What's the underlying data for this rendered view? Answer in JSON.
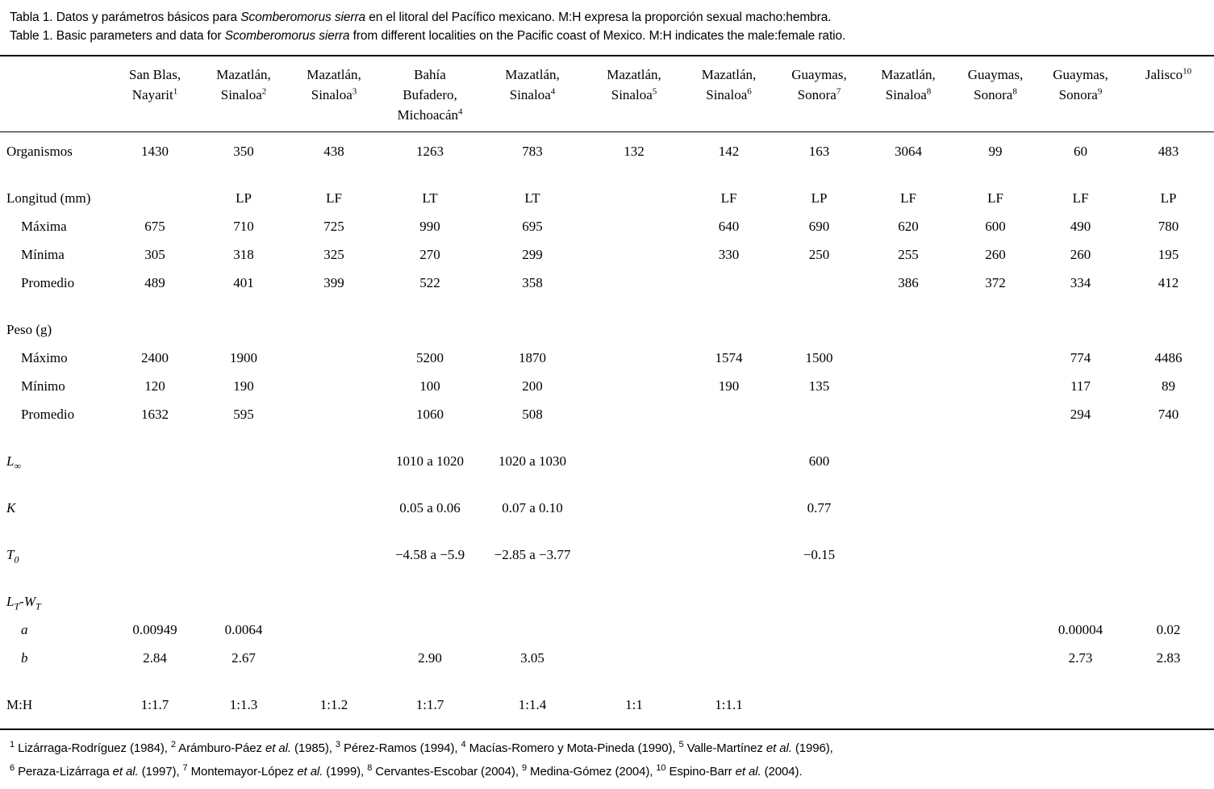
{
  "caption": {
    "species": "Scomberomorus sierra",
    "es": {
      "prefix": "Tabla 1.",
      "body1": " Datos y parámetros básicos para ",
      "body2": " en el litoral del Pacífico mexicano. M:H expresa la proporción sexual macho:hembra."
    },
    "en": {
      "prefix": "Table 1.",
      "body1": " Basic parameters and data for ",
      "body2": " from different localities on the Pacific coast of Mexico. M:H indicates the male:female ratio."
    }
  },
  "table": {
    "columns": [
      {
        "lines": [
          "San Blas,",
          "Nayarit"
        ],
        "sup": "1"
      },
      {
        "lines": [
          "Mazatlán,",
          "Sinaloa"
        ],
        "sup": "2"
      },
      {
        "lines": [
          "Mazatlán,",
          "Sinaloa"
        ],
        "sup": "3"
      },
      {
        "lines": [
          "Bahía",
          "Bufadero,",
          "Michoacán"
        ],
        "sup": "4"
      },
      {
        "lines": [
          "Mazatlán,",
          "Sinaloa"
        ],
        "sup": "4"
      },
      {
        "lines": [
          "Mazatlán,",
          "Sinaloa"
        ],
        "sup": "5"
      },
      {
        "lines": [
          "Mazatlán,",
          "Sinaloa"
        ],
        "sup": "6"
      },
      {
        "lines": [
          "Guaymas,",
          "Sonora"
        ],
        "sup": "7"
      },
      {
        "lines": [
          "Mazatlán,",
          "Sinaloa"
        ],
        "sup": "8"
      },
      {
        "lines": [
          "Guaymas,",
          "Sonora"
        ],
        "sup": "8"
      },
      {
        "lines": [
          "Guaymas,",
          "Sonora"
        ],
        "sup": "9"
      },
      {
        "lines": [
          "Jalisco"
        ],
        "sup": "10"
      }
    ],
    "rows": [
      {
        "id": "organismos",
        "indent": false,
        "group_start": false,
        "label": [
          {
            "t": "text",
            "v": "Organismos"
          }
        ],
        "cells": [
          "1430",
          "350",
          "438",
          "1263",
          "783",
          "132",
          "142",
          "163",
          "3064",
          "99",
          "60",
          "483"
        ]
      },
      {
        "id": "longitud-mm",
        "indent": false,
        "group_start": true,
        "label": [
          {
            "t": "text",
            "v": "Longitud (mm)"
          }
        ],
        "cells": [
          "",
          "LP",
          "LF",
          "LT",
          "LT",
          "",
          "LF",
          "LP",
          "LF",
          "LF",
          "LF",
          "LP"
        ]
      },
      {
        "id": "longitud-maxima",
        "indent": true,
        "group_start": false,
        "label": [
          {
            "t": "text",
            "v": "Máxima"
          }
        ],
        "cells": [
          "675",
          "710",
          "725",
          "990",
          "695",
          "",
          "640",
          "690",
          "620",
          "600",
          "490",
          "780"
        ]
      },
      {
        "id": "longitud-minima",
        "indent": true,
        "group_start": false,
        "label": [
          {
            "t": "text",
            "v": "Mínima"
          }
        ],
        "cells": [
          "305",
          "318",
          "325",
          "270",
          "299",
          "",
          "330",
          "250",
          "255",
          "260",
          "260",
          "195"
        ]
      },
      {
        "id": "longitud-promedio",
        "indent": true,
        "group_start": false,
        "label": [
          {
            "t": "text",
            "v": "Promedio"
          }
        ],
        "cells": [
          "489",
          "401",
          "399",
          "522",
          "358",
          "",
          "",
          "",
          "386",
          "372",
          "334",
          "412"
        ]
      },
      {
        "id": "peso-g",
        "indent": false,
        "group_start": true,
        "label": [
          {
            "t": "text",
            "v": "Peso (g)"
          }
        ],
        "cells": [
          "",
          "",
          "",
          "",
          "",
          "",
          "",
          "",
          "",
          "",
          "",
          ""
        ]
      },
      {
        "id": "peso-maximo",
        "indent": true,
        "group_start": false,
        "label": [
          {
            "t": "text",
            "v": "Máximo"
          }
        ],
        "cells": [
          "2400",
          "1900",
          "",
          "5200",
          "1870",
          "",
          "1574",
          "1500",
          "",
          "",
          "774",
          "4486"
        ]
      },
      {
        "id": "peso-minimo",
        "indent": true,
        "group_start": false,
        "label": [
          {
            "t": "text",
            "v": "Mínimo"
          }
        ],
        "cells": [
          "120",
          "190",
          "",
          "100",
          "200",
          "",
          "190",
          "135",
          "",
          "",
          "117",
          "89"
        ]
      },
      {
        "id": "peso-promedio",
        "indent": true,
        "group_start": false,
        "label": [
          {
            "t": "text",
            "v": "Promedio"
          }
        ],
        "cells": [
          "1632",
          "595",
          "",
          "1060",
          "508",
          "",
          "",
          "",
          "",
          "",
          "294",
          "740"
        ]
      },
      {
        "id": "l-infinity",
        "indent": false,
        "group_start": true,
        "label": [
          {
            "t": "i",
            "v": "L"
          },
          {
            "t": "sub",
            "v": "∞"
          }
        ],
        "cells": [
          "",
          "",
          "",
          "1010 a 1020",
          "1020 a 1030",
          "",
          "",
          "600",
          "",
          "",
          "",
          ""
        ]
      },
      {
        "id": "k",
        "indent": false,
        "group_start": true,
        "label": [
          {
            "t": "i",
            "v": "K"
          }
        ],
        "cells": [
          "",
          "",
          "",
          "0.05 a 0.06",
          "0.07 a 0.10",
          "",
          "",
          "0.77",
          "",
          "",
          "",
          ""
        ]
      },
      {
        "id": "t0",
        "indent": false,
        "group_start": true,
        "label": [
          {
            "t": "i",
            "v": "T"
          },
          {
            "t": "sub",
            "v": "0"
          }
        ],
        "cells": [
          "",
          "",
          "",
          "−4.58 a −5.9",
          "−2.85 a −3.77",
          "",
          "",
          "−0.15",
          "",
          "",
          "",
          ""
        ]
      },
      {
        "id": "lt-wt",
        "indent": false,
        "group_start": true,
        "label": [
          {
            "t": "i",
            "v": "L"
          },
          {
            "t": "sub",
            "v": "T"
          },
          {
            "t": "i",
            "v": "-W"
          },
          {
            "t": "sub",
            "v": "T"
          }
        ],
        "cells": [
          "",
          "",
          "",
          "",
          "",
          "",
          "",
          "",
          "",
          "",
          "",
          ""
        ]
      },
      {
        "id": "a",
        "indent": true,
        "group_start": false,
        "label": [
          {
            "t": "i",
            "v": "a"
          }
        ],
        "cells": [
          "0.00949",
          "0.0064",
          "",
          "",
          "",
          "",
          "",
          "",
          "",
          "",
          "0.00004",
          "0.02"
        ]
      },
      {
        "id": "b",
        "indent": true,
        "group_start": false,
        "label": [
          {
            "t": "i",
            "v": "b"
          }
        ],
        "cells": [
          "2.84",
          "2.67",
          "",
          "2.90",
          "3.05",
          "",
          "",
          "",
          "",
          "",
          "2.73",
          "2.83"
        ]
      },
      {
        "id": "mh",
        "indent": false,
        "group_start": true,
        "label": [
          {
            "t": "text",
            "v": "M:H"
          }
        ],
        "cells": [
          "1:1.7",
          "1:1.3",
          "1:1.2",
          "1:1.7",
          "1:1.4",
          "1:1",
          "1:1.1",
          "",
          "",
          "",
          "",
          ""
        ]
      }
    ]
  },
  "footnotes": {
    "line1": [
      {
        "t": "sup",
        "v": "1"
      },
      {
        "t": "text",
        "v": " Lizárraga-Rodríguez (1984), "
      },
      {
        "t": "sup",
        "v": "2"
      },
      {
        "t": "text",
        "v": " Arámburo-Páez "
      },
      {
        "t": "i",
        "v": "et al."
      },
      {
        "t": "text",
        "v": " (1985), "
      },
      {
        "t": "sup",
        "v": "3"
      },
      {
        "t": "text",
        "v": " Pérez-Ramos (1994), "
      },
      {
        "t": "sup",
        "v": "4"
      },
      {
        "t": "text",
        "v": " Macías-Romero y Mota-Pineda (1990), "
      },
      {
        "t": "sup",
        "v": "5"
      },
      {
        "t": "text",
        "v": " Valle-Martínez "
      },
      {
        "t": "i",
        "v": "et al."
      },
      {
        "t": "text",
        "v": " (1996),"
      }
    ],
    "line2": [
      {
        "t": "sup",
        "v": "6"
      },
      {
        "t": "text",
        "v": " Peraza-Lizárraga "
      },
      {
        "t": "i",
        "v": "et al."
      },
      {
        "t": "text",
        "v": " (1997), "
      },
      {
        "t": "sup",
        "v": "7"
      },
      {
        "t": "text",
        "v": " Montemayor-López "
      },
      {
        "t": "i",
        "v": "et al."
      },
      {
        "t": "text",
        "v": " (1999), "
      },
      {
        "t": "sup",
        "v": "8"
      },
      {
        "t": "text",
        "v": " Cervantes-Escobar (2004), "
      },
      {
        "t": "sup",
        "v": "9"
      },
      {
        "t": "text",
        "v": " Medina-Gómez (2004), "
      },
      {
        "t": "sup",
        "v": "10"
      },
      {
        "t": "text",
        "v": " Espino-Barr "
      },
      {
        "t": "i",
        "v": "et al."
      },
      {
        "t": "text",
        "v": " (2004)."
      }
    ]
  }
}
